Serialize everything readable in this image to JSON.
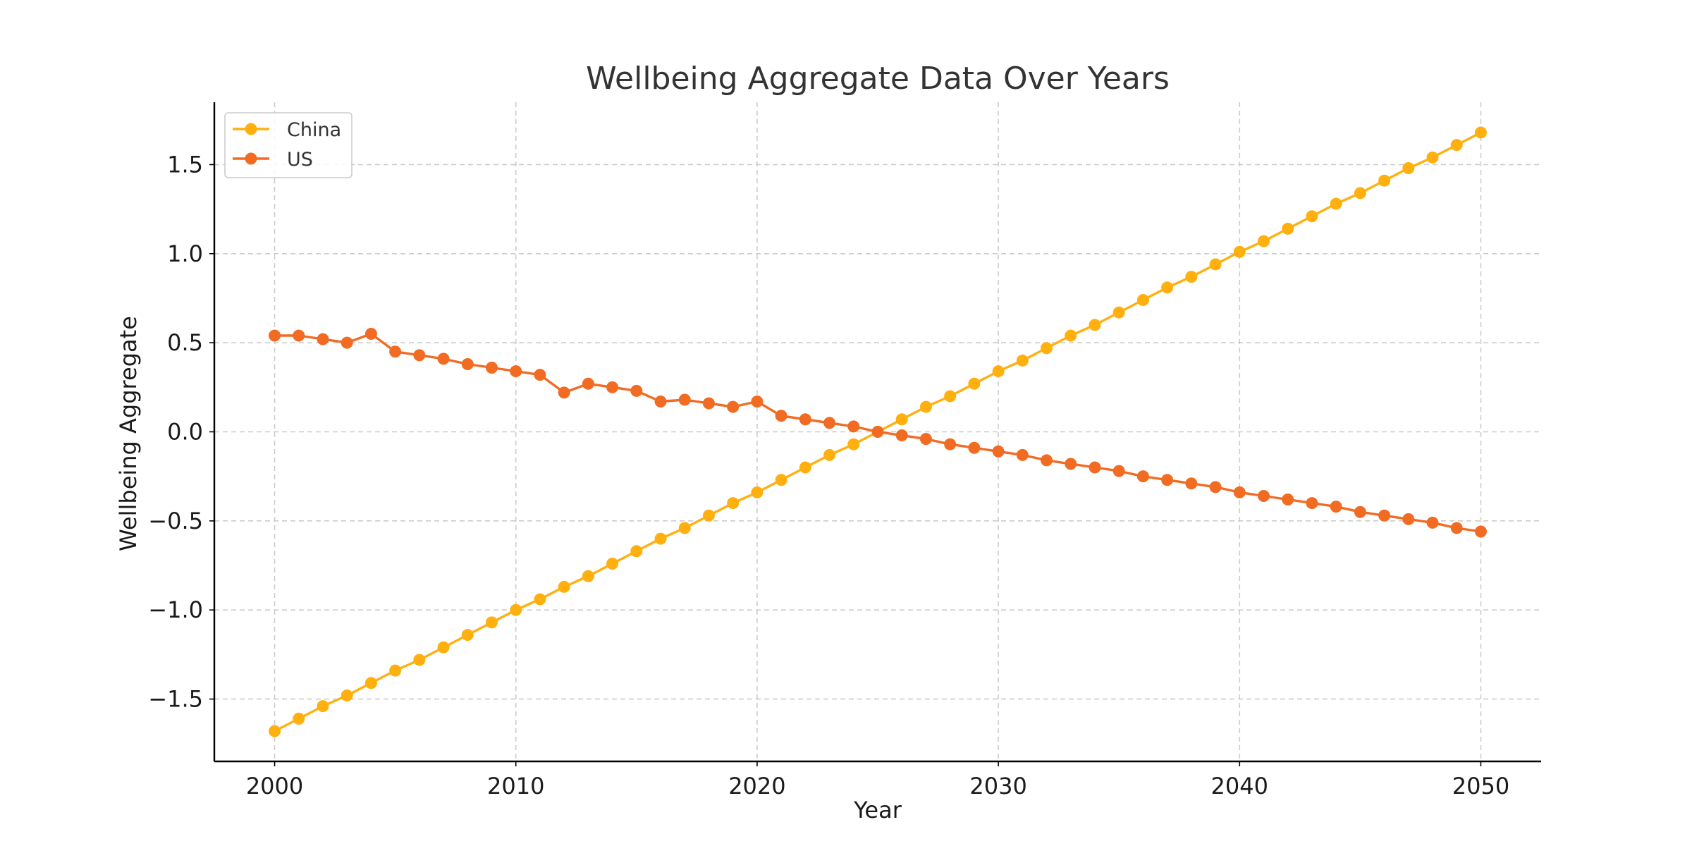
{
  "chart_data": {
    "type": "line",
    "title": "Wellbeing Aggregate Data Over Years",
    "xlabel": "Year",
    "ylabel": "Wellbeing Aggregate",
    "xlim": [
      1997.5,
      2052.5
    ],
    "ylim": [
      -1.85,
      1.85
    ],
    "xticks": [
      2000,
      2010,
      2020,
      2030,
      2040,
      2050
    ],
    "yticks": [
      -1.5,
      -1.0,
      -0.5,
      0.0,
      0.5,
      1.0,
      1.5
    ],
    "ytick_labels": [
      "−1.5",
      "−1.0",
      "−0.5",
      "0.0",
      "0.5",
      "1.0",
      "1.5"
    ],
    "grid": true,
    "legend_position": "top-left",
    "x": [
      2000,
      2001,
      2002,
      2003,
      2004,
      2005,
      2006,
      2007,
      2008,
      2009,
      2010,
      2011,
      2012,
      2013,
      2014,
      2015,
      2016,
      2017,
      2018,
      2019,
      2020,
      2021,
      2022,
      2023,
      2024,
      2025,
      2026,
      2027,
      2028,
      2029,
      2030,
      2031,
      2032,
      2033,
      2034,
      2035,
      2036,
      2037,
      2038,
      2039,
      2040,
      2041,
      2042,
      2043,
      2044,
      2045,
      2046,
      2047,
      2048,
      2049,
      2050
    ],
    "series": [
      {
        "name": "China",
        "color": "#FFB00F",
        "values": [
          -1.68,
          -1.61,
          -1.54,
          -1.48,
          -1.41,
          -1.34,
          -1.28,
          -1.21,
          -1.14,
          -1.07,
          -1.0,
          -0.94,
          -0.87,
          -0.81,
          -0.74,
          -0.67,
          -0.6,
          -0.54,
          -0.47,
          -0.4,
          -0.34,
          -0.27,
          -0.2,
          -0.13,
          -0.07,
          0.0,
          0.07,
          0.14,
          0.2,
          0.27,
          0.34,
          0.4,
          0.47,
          0.54,
          0.6,
          0.67,
          0.74,
          0.81,
          0.87,
          0.94,
          1.01,
          1.07,
          1.14,
          1.21,
          1.28,
          1.34,
          1.41,
          1.48,
          1.54,
          1.61,
          1.68
        ]
      },
      {
        "name": "US",
        "color": "#F26B23",
        "values": [
          0.54,
          0.54,
          0.52,
          0.5,
          0.55,
          0.45,
          0.43,
          0.41,
          0.38,
          0.36,
          0.34,
          0.32,
          0.22,
          0.27,
          0.25,
          0.23,
          0.17,
          0.18,
          0.16,
          0.14,
          0.17,
          0.09,
          0.07,
          0.05,
          0.03,
          0.0,
          -0.02,
          -0.04,
          -0.07,
          -0.09,
          -0.11,
          -0.13,
          -0.16,
          -0.18,
          -0.2,
          -0.22,
          -0.25,
          -0.27,
          -0.29,
          -0.31,
          -0.34,
          -0.36,
          -0.38,
          -0.4,
          -0.42,
          -0.45,
          -0.47,
          -0.49,
          -0.51,
          -0.54,
          -0.56
        ]
      }
    ]
  }
}
